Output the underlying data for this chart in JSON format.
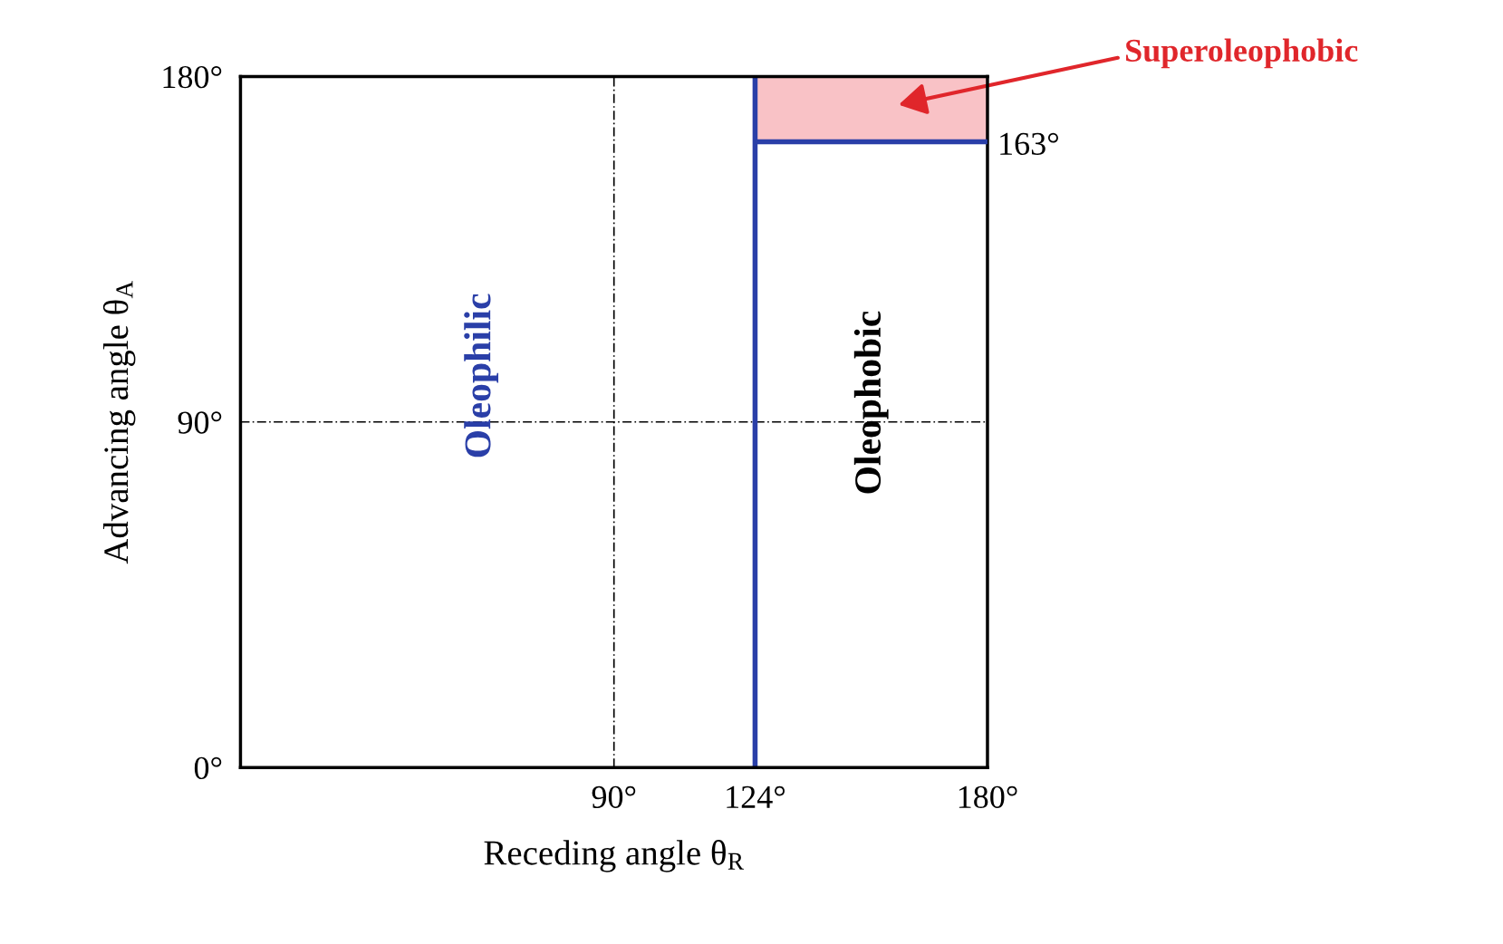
{
  "chart_data": {
    "type": "line",
    "xlabel": "Receding angle θ$_{R}$",
    "ylabel": "Advancing angle θ$_{A}$",
    "xlim": [
      0,
      180
    ],
    "ylim": [
      0,
      180
    ],
    "xticks": [
      {
        "value": 90,
        "label": "90°"
      },
      {
        "value": 124,
        "label": "124°"
      },
      {
        "value": 180,
        "label": "180°"
      }
    ],
    "yticks": [
      {
        "value": 0,
        "label": "0°"
      },
      {
        "value": 90,
        "label": "90°"
      },
      {
        "value": 180,
        "label": "180°"
      }
    ],
    "ref_lines": [
      {
        "axis": "x",
        "value": 90,
        "color": "#000000",
        "line_style": "dotted"
      },
      {
        "axis": "y",
        "value": 90,
        "color": "#000000",
        "line_style": "dotted"
      },
      {
        "axis": "x",
        "value": 124,
        "color": "#2a3fa8",
        "line_style": "solid"
      }
    ],
    "series": [
      {
        "color": "#2a3fa8",
        "x": [
          124,
          180
        ],
        "values": [
          163,
          163
        ],
        "lower": [
          163,
          163
        ],
        "upper": [
          180,
          180
        ]
      }
    ],
    "annotations": [
      {
        "text": "163°",
        "x": 180,
        "y": 163
      },
      "Superoleophobic",
      "Oleophilic",
      "Oleophobic"
    ]
  }
}
